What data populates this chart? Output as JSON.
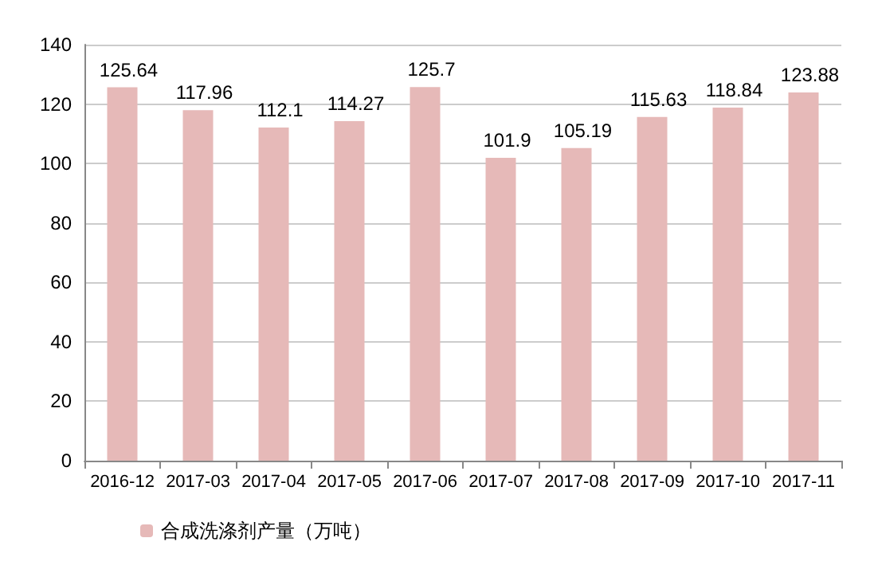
{
  "chart_data": {
    "type": "bar",
    "categories": [
      "2016-12",
      "2017-03",
      "2017-04",
      "2017-05",
      "2017-06",
      "2017-07",
      "2017-08",
      "2017-09",
      "2017-10",
      "2017-11"
    ],
    "series": [
      {
        "name": "合成洗涤剂产量（万吨）",
        "color": "#e6b9b8",
        "values": [
          125.64,
          117.96,
          112.1,
          114.27,
          125.7,
          101.9,
          105.19,
          115.63,
          118.84,
          123.88
        ]
      }
    ],
    "ylim": [
      0,
      140
    ],
    "yticks": [
      0,
      20,
      40,
      60,
      80,
      100,
      120,
      140
    ],
    "grid": "y",
    "legend": "bottom left",
    "data_labels": true
  }
}
